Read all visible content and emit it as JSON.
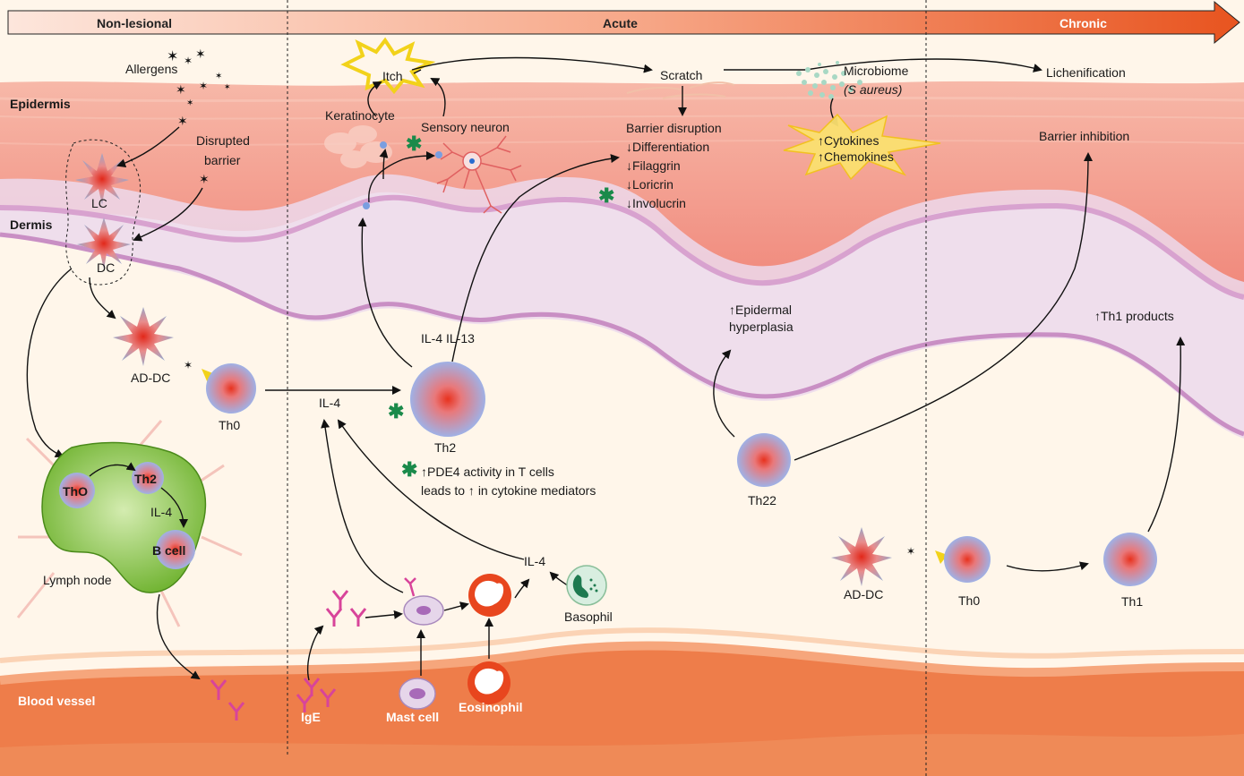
{
  "header": {
    "non_lesional": "Non-lesional",
    "acute": "Acute",
    "chronic": "Chronic"
  },
  "layers": {
    "epidermis": "Epidermis",
    "dermis": "Dermis",
    "blood_vessel": "Blood vessel"
  },
  "left": {
    "allergens": "Allergens",
    "disrupted": "Disrupted",
    "barrier": "barrier",
    "lc": "LC",
    "dc": "DC",
    "ad_dc": "AD-DC",
    "th0": "Th0",
    "lymph_th0": "ThO",
    "lymph_th2": "Th2",
    "lymph_il4": "IL-4",
    "lymph_bcell": "B cell",
    "lymph_node": "Lymph node"
  },
  "acute": {
    "itch": "Itch",
    "keratinocyte": "Keratinocyte",
    "sensory_neuron": "Sensory neuron",
    "il4_il13": "IL-4  IL-13",
    "il4_left": "IL-4",
    "th2": "Th2",
    "pde4_line1": "↑PDE4 activity in T cells",
    "pde4_line2": "leads to ↑ in cytokine mediators",
    "il4_basophil": "IL-4",
    "basophil": "Basophil",
    "ige": "IgE",
    "mast_cell": "Mast cell",
    "eosinophil": "Eosinophil",
    "scratch": "Scratch",
    "barrier_disruption": "Barrier disruption",
    "differentiation": "↓Differentiation",
    "filaggrin": "↓Filaggrin",
    "loricrin": "↓Loricrin",
    "involucrin": "↓Involucrin",
    "microbiome": "Microbiome",
    "s_aureus": "(S aureus)",
    "cytokines": "↑Cytokines",
    "chemokines": "↑Chemokines",
    "epidermal_1": "↑Epidermal",
    "epidermal_2": "hyperplasia",
    "th22": "Th22"
  },
  "chronic": {
    "lichenification": "Lichenification",
    "barrier_inhibition": "Barrier inhibition",
    "th1_products": "↑Th1 products",
    "ad_dc": "AD-DC",
    "th0": "Th0",
    "th1": "Th1"
  },
  "colors": {
    "epidermis": "#f29a8c",
    "dermis": "#fff6ea",
    "blood_vessel": "#ee7d4a",
    "lymph_node": "#86c440",
    "asterisk": "#1a8a4a",
    "arrow_start": "#fde3d8",
    "arrow_end": "#e8541f"
  }
}
